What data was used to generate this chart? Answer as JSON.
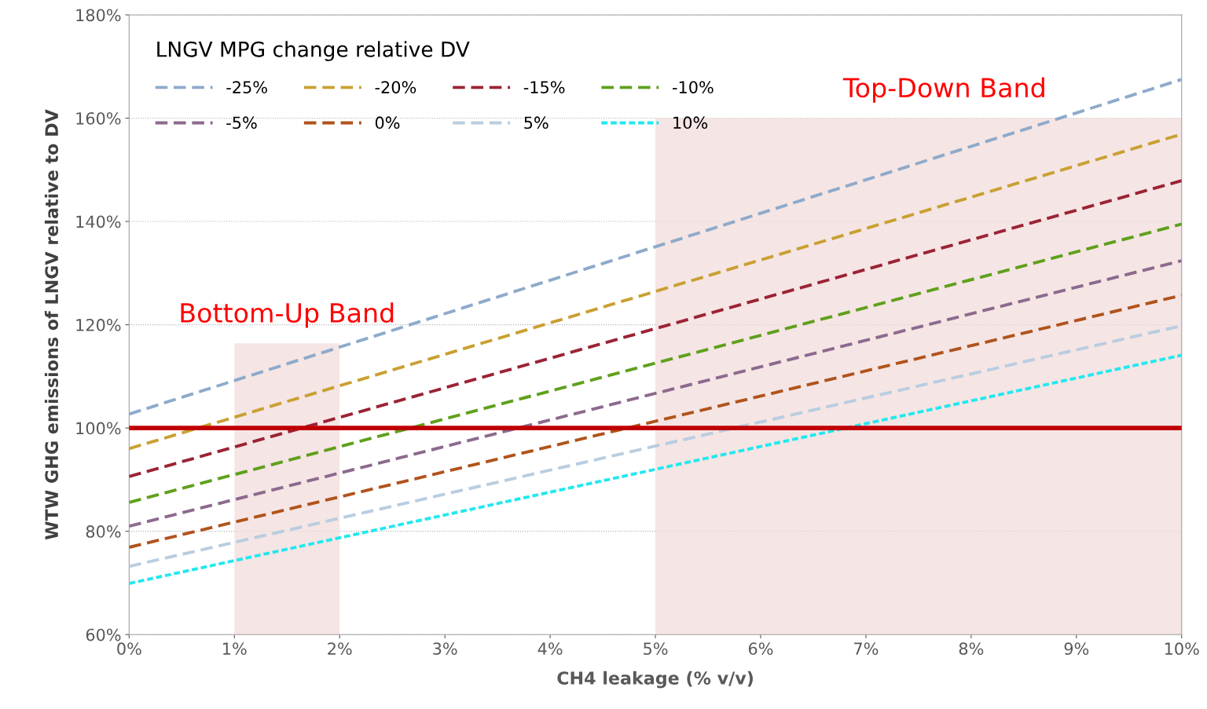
{
  "chart_data": {
    "type": "line",
    "xlabel": "CH4 leakage (% v/v)",
    "ylabel": "WTW GHG emissions of LNGV relative to DV",
    "legend_title": "LNGV MPG change relative DV",
    "legend": "top left",
    "grid": "y",
    "line_style": "dashed",
    "marker": "none",
    "xlim": [
      0,
      10
    ],
    "xticks": [
      {
        "value": 0,
        "label": "0%"
      },
      {
        "value": 1,
        "label": "1%"
      },
      {
        "value": 2,
        "label": "2%"
      },
      {
        "value": 3,
        "label": "3%"
      },
      {
        "value": 4,
        "label": "4%"
      },
      {
        "value": 5,
        "label": "5%"
      },
      {
        "value": 6,
        "label": "6%"
      },
      {
        "value": 7,
        "label": "7%"
      },
      {
        "value": 8,
        "label": "8%"
      },
      {
        "value": 9,
        "label": "9%"
      },
      {
        "value": 10,
        "label": "10%"
      }
    ],
    "ylim": [
      60,
      180
    ],
    "yticks": [
      {
        "value": 60,
        "label": "60%"
      },
      {
        "value": 80,
        "label": "80%"
      },
      {
        "value": 100,
        "label": "100%"
      },
      {
        "value": 120,
        "label": "120%"
      },
      {
        "value": 140,
        "label": "140%"
      },
      {
        "value": 160,
        "label": "160%"
      },
      {
        "value": 180,
        "label": "180%"
      }
    ],
    "series": [
      {
        "type": "area",
        "color": "#f2dcdb",
        "x": [
          1,
          2
        ],
        "values": [
          116.4,
          116.4
        ]
      },
      {
        "type": "area",
        "color": "#f2dcdb",
        "x": [
          5,
          10
        ],
        "values": [
          160,
          160
        ]
      },
      {
        "name": "-25%",
        "color": "#8eaacb",
        "x": [
          0,
          10
        ],
        "values": [
          102.7,
          167.5
        ]
      },
      {
        "name": "-20%",
        "color": "#c9a032",
        "x": [
          0,
          10
        ],
        "values": [
          96.0,
          156.9
        ]
      },
      {
        "name": "-15%",
        "color": "#9b2335",
        "x": [
          0,
          10
        ],
        "values": [
          90.6,
          147.9
        ]
      },
      {
        "name": "-10%",
        "color": "#5fa01c",
        "x": [
          0,
          10
        ],
        "values": [
          85.6,
          139.5
        ]
      },
      {
        "name": "-5%",
        "color": "#8c6a8e",
        "x": [
          0,
          10
        ],
        "values": [
          81.0,
          132.4
        ]
      },
      {
        "name": "0%",
        "color": "#b0531c",
        "x": [
          0,
          10
        ],
        "values": [
          76.9,
          125.7
        ]
      },
      {
        "name": "5%",
        "color": "#b9cde0",
        "x": [
          0,
          10
        ],
        "values": [
          73.2,
          119.8
        ]
      },
      {
        "name": "10%",
        "color": "#22e8f0",
        "x": [
          0,
          10
        ],
        "values": [
          69.9,
          114.1
        ],
        "line_style": "dotted"
      }
    ],
    "ref_lines": [
      {
        "axis": "y",
        "value": 100,
        "color": "#c00000",
        "line_style": "solid"
      }
    ],
    "annotations": [
      {
        "text": "Bottom-Up Band",
        "x": 1.5,
        "y": 116.4
      },
      {
        "text": "Top-Down Band",
        "x": 7.75,
        "y": 160
      }
    ]
  }
}
